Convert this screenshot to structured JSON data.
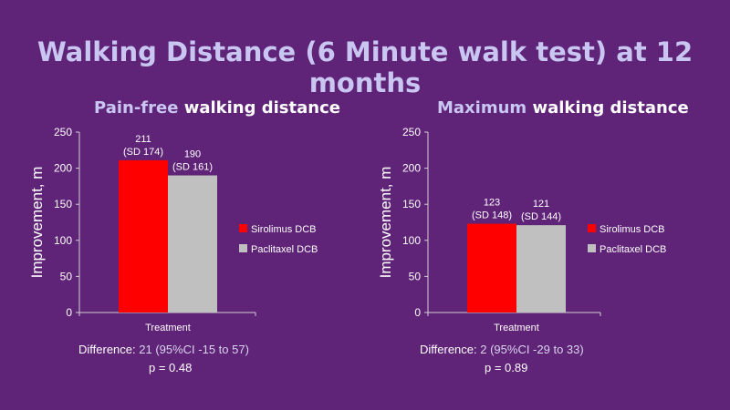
{
  "slide": {
    "title": "Walking Distance (6 Minute walk test) at 12 months"
  },
  "colors": {
    "background": "#5f2378",
    "sirolimus": "#ff0000",
    "paclitaxel": "#c0c0c0",
    "title": "#c9c6f2"
  },
  "panels": [
    {
      "title_highlight": "Pain-free",
      "title_rest": " walking distance",
      "difference_label": "Difference: ",
      "difference_value": "21 (95%CI -15 to 57)",
      "p_value": "p = 0.48"
    },
    {
      "title_highlight": "Maximum",
      "title_rest": " walking distance",
      "difference_label": "Difference: ",
      "difference_value": "2 (95%CI -29 to 33)",
      "p_value": "p = 0.89"
    }
  ],
  "chart_data": [
    {
      "type": "bar",
      "title": "Pain-free walking distance",
      "categories": [
        "Treatment"
      ],
      "xlabel": "Treatment",
      "ylabel": "Improvement, m",
      "ylim": [
        0,
        250
      ],
      "yticks": [
        0,
        50,
        100,
        150,
        200,
        250
      ],
      "legend_position": "right",
      "series": [
        {
          "name": "Sirolimus DCB",
          "values": [
            211
          ],
          "label_line1": "211",
          "label_line2": "(SD 174)",
          "color": "#ff0000"
        },
        {
          "name": "Paclitaxel DCB",
          "values": [
            190
          ],
          "label_line1": "190",
          "label_line2": "(SD 161)",
          "color": "#c0c0c0"
        }
      ]
    },
    {
      "type": "bar",
      "title": "Maximum walking distance",
      "categories": [
        "Treatment"
      ],
      "xlabel": "Treatment",
      "ylabel": "Improvement, m",
      "ylim": [
        0,
        250
      ],
      "yticks": [
        0,
        50,
        100,
        150,
        200,
        250
      ],
      "legend_position": "right",
      "series": [
        {
          "name": "Sirolimus DCB",
          "values": [
            123
          ],
          "label_line1": "123",
          "label_line2": "(SD 148)",
          "color": "#ff0000"
        },
        {
          "name": "Paclitaxel DCB",
          "values": [
            121
          ],
          "label_line1": "121",
          "label_line2": "(SD 144)",
          "color": "#c0c0c0"
        }
      ]
    }
  ]
}
